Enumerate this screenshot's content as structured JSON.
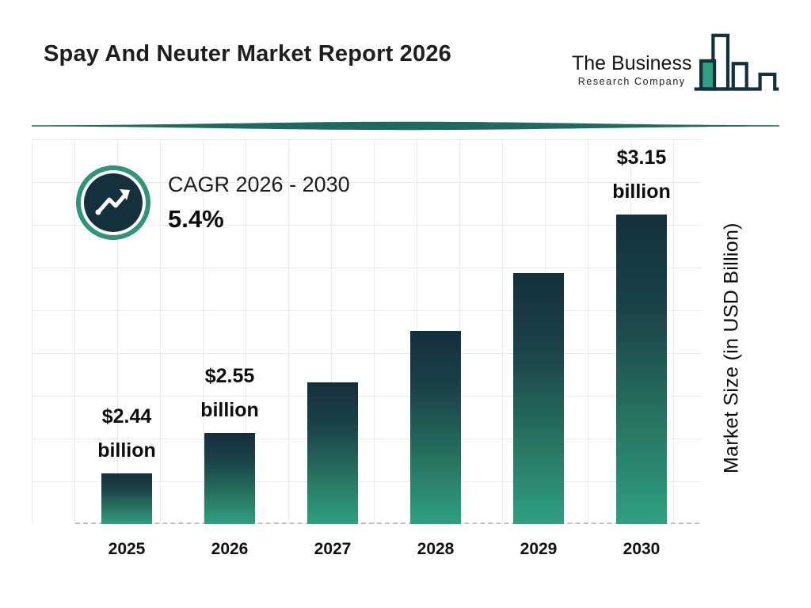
{
  "header": {
    "title": "Spay And Neuter Market Report 2026"
  },
  "logo": {
    "line1": "The Business",
    "line2": "Research Company"
  },
  "cagr": {
    "label": "CAGR 2026 - 2030",
    "value": "5.4%"
  },
  "chart_data": {
    "type": "bar",
    "title": "Spay And Neuter Market Report 2026",
    "categories": [
      "2025",
      "2026",
      "2027",
      "2028",
      "2029",
      "2030"
    ],
    "values": [
      2.44,
      2.55,
      2.69,
      2.83,
      2.99,
      3.15
    ],
    "value_labels": [
      [
        "$2.44",
        "billion"
      ],
      [
        "$2.55",
        "billion"
      ],
      null,
      null,
      null,
      [
        "$3.15",
        "billion"
      ]
    ],
    "ylabel": "Market Size (in USD Billion)",
    "ylim": [
      2.3,
      3.36
    ],
    "grid": true,
    "legend": "none",
    "bar_gradient_top": "#142f3c",
    "bar_gradient_bottom": "#2fa080",
    "accent_teal": "#2f9478",
    "accent_navy": "#14303d"
  }
}
